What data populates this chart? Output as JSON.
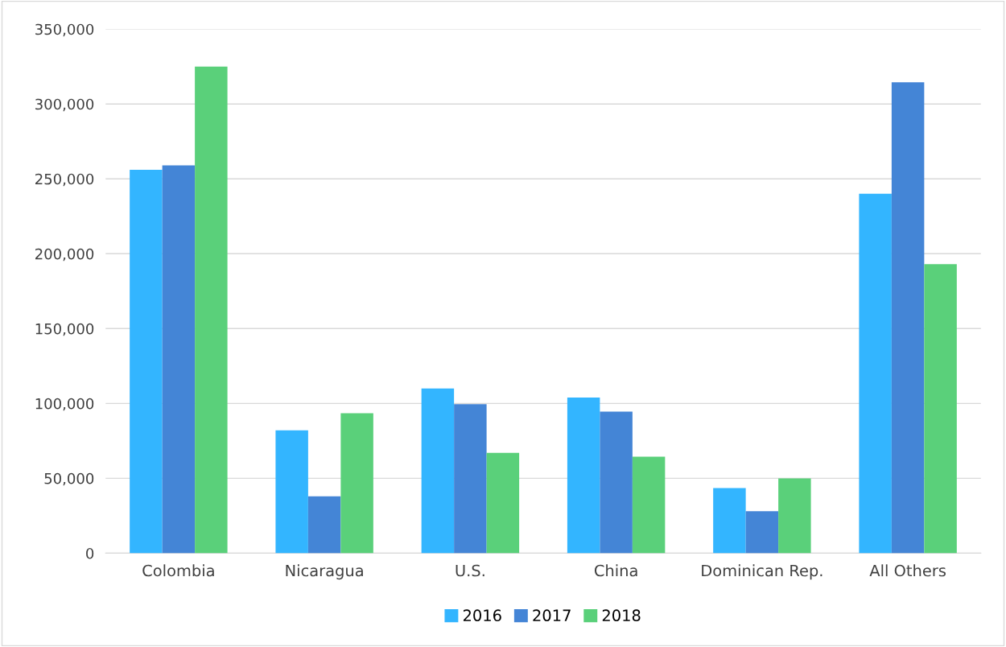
{
  "chart_data": {
    "type": "bar",
    "categories": [
      "Colombia",
      "Nicaragua",
      "U.S.",
      "China",
      "Dominican Rep.",
      "All Others"
    ],
    "series": [
      {
        "name": "2016",
        "color": "#33b5ff",
        "values": [
          256000,
          82000,
          110000,
          104000,
          43500,
          240000
        ]
      },
      {
        "name": "2017",
        "color": "#4485d6",
        "values": [
          259000,
          38000,
          99500,
          94500,
          28000,
          314500
        ]
      },
      {
        "name": "2018",
        "color": "#5ad07a",
        "values": [
          325000,
          93500,
          67000,
          64500,
          50000,
          193000
        ]
      }
    ],
    "ylim": [
      0,
      350000
    ],
    "yticks": [
      {
        "value": 0,
        "label": "0"
      },
      {
        "value": 50000,
        "label": "50,000"
      },
      {
        "value": 100000,
        "label": "100,000"
      },
      {
        "value": 150000,
        "label": "150,000"
      },
      {
        "value": 200000,
        "label": "200,000"
      },
      {
        "value": 250000,
        "label": "250,000"
      },
      {
        "value": 300000,
        "label": "300,000"
      },
      {
        "value": 350000,
        "label": "350,000"
      }
    ],
    "grid": "y",
    "legend": "bottom"
  }
}
